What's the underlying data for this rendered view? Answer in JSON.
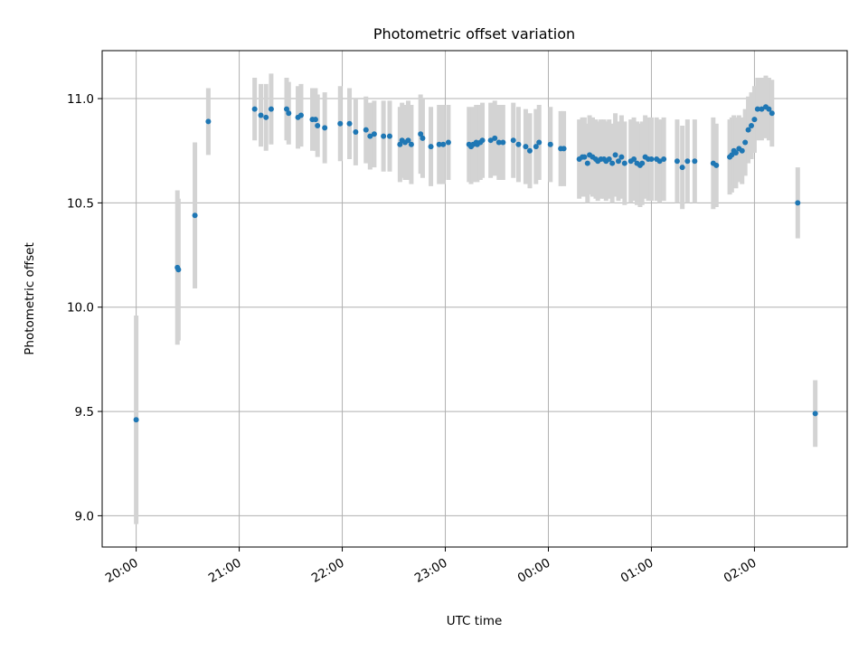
{
  "chart_data": {
    "type": "scatter",
    "title": "Photometric offset variation",
    "xlabel": "UTC time",
    "ylabel": "Photometric offset",
    "x_unit": "hours",
    "xlim": [
      -0.33,
      6.9
    ],
    "ylim": [
      8.85,
      11.23
    ],
    "grid": true,
    "x_ticks": [
      {
        "value": 0,
        "label": "20:00"
      },
      {
        "value": 1,
        "label": "21:00"
      },
      {
        "value": 2,
        "label": "22:00"
      },
      {
        "value": 3,
        "label": "23:00"
      },
      {
        "value": 4,
        "label": "00:00"
      },
      {
        "value": 5,
        "label": "01:00"
      },
      {
        "value": 6,
        "label": "02:00"
      }
    ],
    "y_ticks": [
      {
        "value": 9.0,
        "label": "9.0"
      },
      {
        "value": 9.5,
        "label": "9.5"
      },
      {
        "value": 10.0,
        "label": "10.0"
      },
      {
        "value": 10.5,
        "label": "10.5"
      },
      {
        "value": 11.0,
        "label": "11.0"
      }
    ],
    "colors": {
      "point": "#1f77b4",
      "errorbar": "#d3d3d3",
      "grid": "#b0b0b0",
      "axes": "#000000"
    },
    "series": [
      {
        "x": [
          0.0,
          0.4,
          0.41,
          0.57,
          0.7,
          1.15,
          1.21,
          1.26,
          1.31,
          1.46,
          1.48,
          1.57,
          1.6,
          1.71,
          1.74,
          1.76,
          1.83,
          1.98,
          2.07,
          2.13,
          2.23,
          2.27,
          2.31,
          2.4,
          2.46,
          2.56,
          2.58,
          2.61,
          2.64,
          2.67,
          2.76,
          2.78,
          2.86,
          2.94,
          2.98,
          3.03,
          3.23,
          3.25,
          3.27,
          3.3,
          3.31,
          3.34,
          3.36,
          3.44,
          3.48,
          3.52,
          3.56,
          3.66,
          3.71,
          3.78,
          3.82,
          3.88,
          3.91,
          4.02,
          4.12,
          4.15,
          4.3,
          4.33,
          4.35,
          4.38,
          4.4,
          4.43,
          4.46,
          4.48,
          4.51,
          4.54,
          4.56,
          4.59,
          4.62,
          4.65,
          4.68,
          4.71,
          4.74,
          4.8,
          4.83,
          4.86,
          4.89,
          4.91,
          4.94,
          4.97,
          5.0,
          5.05,
          5.08,
          5.12,
          5.25,
          5.3,
          5.35,
          5.42,
          5.6,
          5.63,
          5.76,
          5.78,
          5.8,
          5.82,
          5.85,
          5.88,
          5.91,
          5.94,
          5.97,
          6.0,
          6.03,
          6.07,
          6.11,
          6.14,
          6.17,
          6.42,
          6.59
        ],
        "y": [
          9.46,
          10.19,
          10.18,
          10.44,
          10.89,
          10.95,
          10.92,
          10.91,
          10.95,
          10.95,
          10.93,
          10.91,
          10.92,
          10.9,
          10.9,
          10.87,
          10.86,
          10.88,
          10.88,
          10.84,
          10.85,
          10.82,
          10.83,
          10.82,
          10.82,
          10.78,
          10.8,
          10.79,
          10.8,
          10.78,
          10.83,
          10.81,
          10.77,
          10.78,
          10.78,
          10.79,
          10.78,
          10.77,
          10.78,
          10.79,
          10.78,
          10.79,
          10.8,
          10.8,
          10.81,
          10.79,
          10.79,
          10.8,
          10.78,
          10.77,
          10.75,
          10.77,
          10.79,
          10.78,
          10.76,
          10.76,
          10.71,
          10.72,
          10.72,
          10.69,
          10.73,
          10.72,
          10.71,
          10.7,
          10.71,
          10.71,
          10.7,
          10.71,
          10.69,
          10.73,
          10.7,
          10.72,
          10.69,
          10.7,
          10.71,
          10.69,
          10.68,
          10.69,
          10.72,
          10.71,
          10.71,
          10.71,
          10.7,
          10.71,
          10.7,
          10.67,
          10.7,
          10.7,
          10.69,
          10.68,
          10.72,
          10.73,
          10.75,
          10.74,
          10.76,
          10.75,
          10.79,
          10.85,
          10.87,
          10.9,
          10.95,
          10.95,
          10.96,
          10.95,
          10.93,
          10.5,
          9.49
        ],
        "yerr": [
          0.5,
          0.37,
          0.34,
          0.35,
          0.16,
          0.15,
          0.15,
          0.16,
          0.17,
          0.15,
          0.15,
          0.15,
          0.15,
          0.15,
          0.15,
          0.15,
          0.17,
          0.18,
          0.17,
          0.16,
          0.16,
          0.16,
          0.16,
          0.17,
          0.17,
          0.18,
          0.18,
          0.18,
          0.19,
          0.19,
          0.19,
          0.19,
          0.19,
          0.19,
          0.19,
          0.18,
          0.18,
          0.18,
          0.18,
          0.18,
          0.18,
          0.18,
          0.18,
          0.18,
          0.18,
          0.18,
          0.18,
          0.18,
          0.18,
          0.18,
          0.18,
          0.18,
          0.18,
          0.18,
          0.18,
          0.18,
          0.19,
          0.19,
          0.19,
          0.19,
          0.19,
          0.19,
          0.19,
          0.19,
          0.19,
          0.19,
          0.19,
          0.19,
          0.19,
          0.2,
          0.19,
          0.2,
          0.2,
          0.2,
          0.2,
          0.2,
          0.2,
          0.2,
          0.2,
          0.2,
          0.2,
          0.2,
          0.2,
          0.2,
          0.2,
          0.2,
          0.2,
          0.2,
          0.22,
          0.2,
          0.18,
          0.18,
          0.17,
          0.17,
          0.16,
          0.16,
          0.16,
          0.16,
          0.16,
          0.16,
          0.15,
          0.15,
          0.15,
          0.15,
          0.16,
          0.17,
          0.16
        ]
      }
    ]
  }
}
